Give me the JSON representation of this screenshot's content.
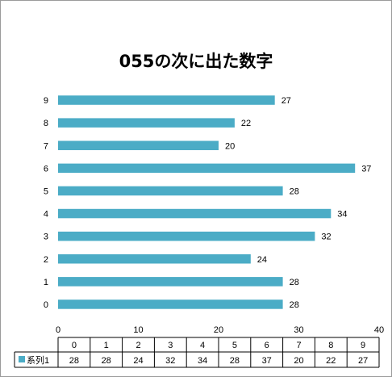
{
  "chart_data": {
    "type": "bar",
    "orientation": "horizontal",
    "title": "055の次に出た数字",
    "categories": [
      "0",
      "1",
      "2",
      "3",
      "4",
      "5",
      "6",
      "7",
      "8",
      "9"
    ],
    "series": [
      {
        "name": "系列1",
        "values": [
          28,
          28,
          24,
          32,
          34,
          28,
          37,
          20,
          22,
          27
        ],
        "color": "#4bacc6"
      }
    ],
    "xlim": [
      0,
      40
    ],
    "x_ticks": [
      0,
      10,
      20,
      30,
      40
    ],
    "data_labels": true,
    "grid": false,
    "legend": "data-table"
  }
}
